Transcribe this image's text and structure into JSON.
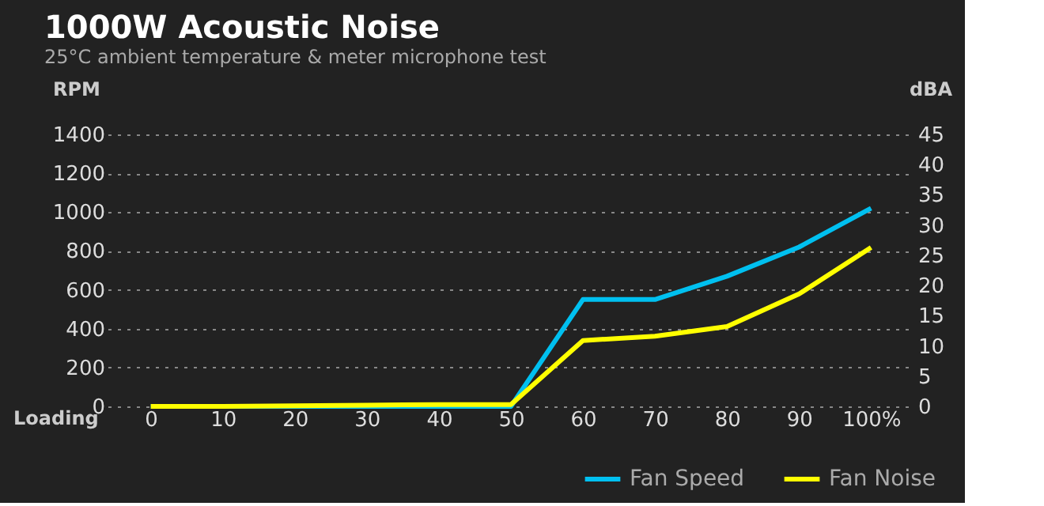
{
  "chart_data": {
    "type": "line",
    "title": "1000W Acoustic Noise",
    "subtitle": "25°C ambient temperature & meter microphone test",
    "xlabel": "Loading",
    "ylabel": "RPM",
    "y2label": "dBA",
    "x": [
      0,
      10,
      20,
      30,
      40,
      50,
      60,
      70,
      80,
      90,
      100
    ],
    "series": [
      {
        "name": "Fan Speed",
        "color": "#00c0f0",
        "values": [
          0,
          0,
          0,
          0,
          0,
          0,
          550,
          550,
          670,
          820,
          1020
        ]
      },
      {
        "name": "Fan Noise",
        "color": "#ffff00",
        "axis": "y2",
        "values": [
          0,
          0,
          0.1,
          0.2,
          0.3,
          0.3,
          10.9,
          11.6,
          13.2,
          18.6,
          26.3
        ]
      }
    ],
    "xlim": [
      -6,
      106
    ],
    "xticks": [
      0,
      10,
      20,
      30,
      40,
      50,
      60,
      70,
      80,
      90,
      {
        "value": 100,
        "label": "100%"
      }
    ],
    "ylim": [
      0,
      1400
    ],
    "yticks": [
      0,
      200,
      400,
      600,
      800,
      1000,
      1200,
      1400
    ],
    "y2lim": [
      0,
      45
    ],
    "y2ticks": [
      0,
      5,
      10,
      15,
      20,
      25,
      30,
      35,
      40,
      45
    ],
    "grid": "y",
    "legend": "bottom right",
    "marker": "none",
    "line_style": "solid"
  }
}
